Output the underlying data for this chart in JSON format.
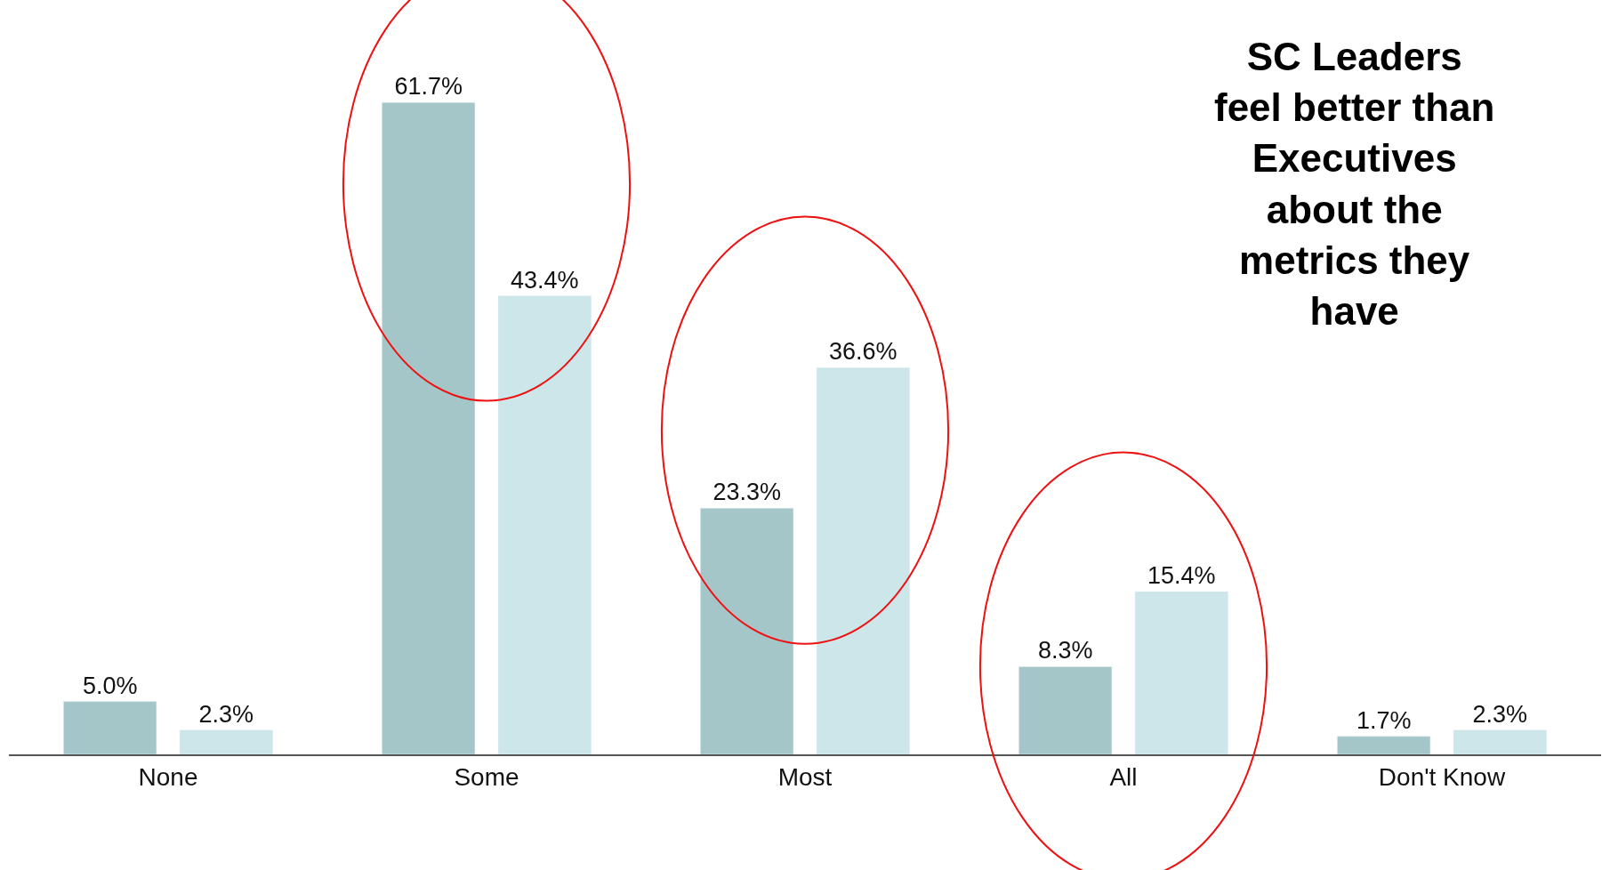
{
  "chart_data": {
    "type": "bar",
    "categories": [
      "None",
      "Some",
      "Most",
      "All",
      "Don't Know"
    ],
    "series": [
      {
        "color": "#a5c6c9",
        "values": [
          5.0,
          61.7,
          23.3,
          8.3,
          1.7
        ],
        "value_labels": [
          "5.0%",
          "61.7%",
          "23.3%",
          "8.3%",
          "1.7%"
        ]
      },
      {
        "color": "#cde6e9",
        "values": [
          2.3,
          43.4,
          36.6,
          15.4,
          2.3
        ],
        "value_labels": [
          "2.3%",
          "43.4%",
          "36.6%",
          "15.4%",
          "2.3%"
        ]
      }
    ],
    "annotations": [
      "SC Leaders\nfeel better than\nExecutives\nabout the\nmetrics they\nhave"
    ],
    "tick_labels": "x"
  }
}
